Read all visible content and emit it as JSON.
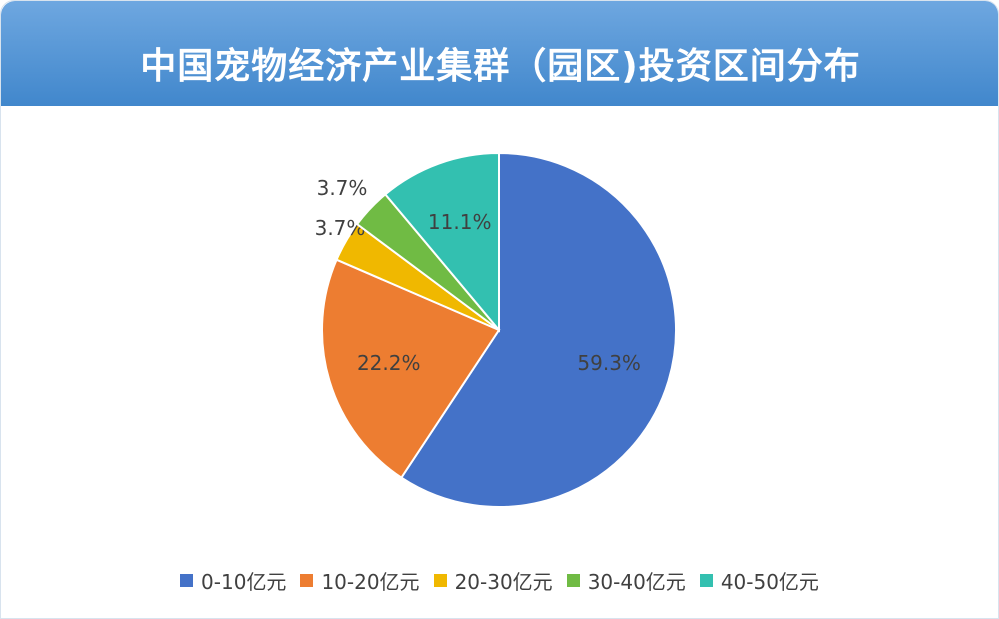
{
  "header": {
    "title": "中国宠物经济产业集群（园区)投资区间分布"
  },
  "chart_data": {
    "type": "pie",
    "title": "中国宠物经济产业集群（园区)投资区间分布",
    "categories": [
      "0-10亿元",
      "10-20亿元",
      "20-30亿元",
      "30-40亿元",
      "40-50亿元"
    ],
    "values": [
      59.3,
      22.2,
      3.7,
      3.7,
      11.1
    ],
    "labels": [
      "59.3%",
      "22.2%",
      "3.7%",
      "3.7%",
      "11.1%"
    ],
    "colors": [
      "#4472c8",
      "#ed7d31",
      "#f0b800",
      "#70bb44",
      "#33c0b0"
    ],
    "start_angle": "12 o'clock",
    "direction": "clockwise",
    "legend": "bottom"
  }
}
